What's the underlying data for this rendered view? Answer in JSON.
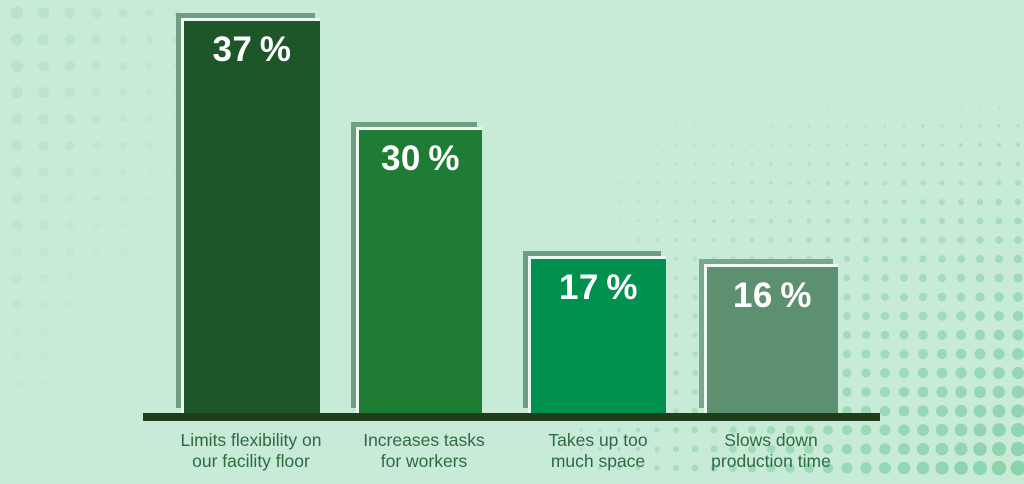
{
  "chart_data": {
    "type": "bar",
    "title": "",
    "categories": [
      "Limits flexibility on our facility floor",
      "Increases tasks for workers",
      "Takes up too much space",
      "Slows down production time"
    ],
    "values": [
      37,
      30,
      17,
      16
    ],
    "unit": "%",
    "ylim": [
      0,
      40
    ],
    "grid": "off",
    "legend": "none",
    "value_labels_position": "inside-top",
    "bars": [
      {
        "value": 37,
        "pct_label": "37 %",
        "label_line1": "Limits flexibility on",
        "label_line2": "our facility floor",
        "fill": "#1d5629",
        "shadow": "#6f9e80"
      },
      {
        "value": 30,
        "pct_label": "30 %",
        "label_line1": "Increases tasks",
        "label_line2": "for workers",
        "fill": "#1f7c34",
        "shadow": "#6f9e80"
      },
      {
        "value": 17,
        "pct_label": "17 %",
        "label_line1": "Takes up too",
        "label_line2": "much space",
        "fill": "#009150",
        "shadow": "#6f9e80"
      },
      {
        "value": 16,
        "pct_label": "16 %",
        "label_line1": "Slows down",
        "label_line2": "production time",
        "fill": "#5d9070",
        "shadow": "#7aa689"
      }
    ]
  },
  "style": {
    "background": "#c8ebd8",
    "axis_color": "#203e19",
    "category_label_color": "#2d6b3e",
    "value_label_color": "#ffffff",
    "bar_highlight_border": "#edf8f1",
    "dot_left_color": "#b4e0c6",
    "dot_right_color": "#86d1a8"
  }
}
